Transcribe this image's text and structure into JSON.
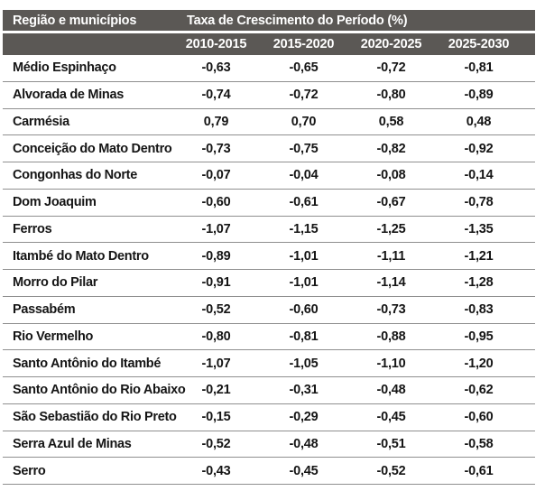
{
  "table": {
    "region_header": "Região e municípios",
    "group_header": "Taxa de Crescimento do Período (%)",
    "period_columns": [
      "2010-2015",
      "2015-2020",
      "2020-2025",
      "2025-2030"
    ],
    "rows": [
      {
        "name": "Médio Espinhaço",
        "values": [
          "-0,63",
          "-0,65",
          "-0,72",
          "-0,81"
        ]
      },
      {
        "name": "Alvorada de Minas",
        "values": [
          "-0,74",
          "-0,72",
          "-0,80",
          "-0,89"
        ]
      },
      {
        "name": "Carmésia",
        "values": [
          "0,79",
          "0,70",
          "0,58",
          "0,48"
        ]
      },
      {
        "name": "Conceição do Mato Dentro",
        "values": [
          "-0,73",
          "-0,75",
          "-0,82",
          "-0,92"
        ]
      },
      {
        "name": "Congonhas do Norte",
        "values": [
          "-0,07",
          "-0,04",
          "-0,08",
          "-0,14"
        ]
      },
      {
        "name": "Dom Joaquim",
        "values": [
          "-0,60",
          "-0,61",
          "-0,67",
          "-0,78"
        ]
      },
      {
        "name": "Ferros",
        "values": [
          "-1,07",
          "-1,15",
          "-1,25",
          "-1,35"
        ]
      },
      {
        "name": "Itambé do Mato Dentro",
        "values": [
          "-0,89",
          "-1,01",
          "-1,11",
          "-1,21"
        ]
      },
      {
        "name": "Morro do Pilar",
        "values": [
          "-0,91",
          "-1,01",
          "-1,14",
          "-1,28"
        ]
      },
      {
        "name": "Passabém",
        "values": [
          "-0,52",
          "-0,60",
          "-0,73",
          "-0,83"
        ]
      },
      {
        "name": "Rio Vermelho",
        "values": [
          "-0,80",
          "-0,81",
          "-0,88",
          "-0,95"
        ]
      },
      {
        "name": "Santo Antônio do Itambé",
        "values": [
          "-1,07",
          "-1,05",
          "-1,10",
          "-1,20"
        ]
      },
      {
        "name": "Santo Antônio do Rio Abaixo",
        "values": [
          "-0,21",
          "-0,31",
          "-0,48",
          "-0,62"
        ]
      },
      {
        "name": "São Sebastião do Rio Preto",
        "values": [
          "-0,15",
          "-0,29",
          "-0,45",
          "-0,60"
        ]
      },
      {
        "name": "Serra Azul de Minas",
        "values": [
          "-0,52",
          "-0,48",
          "-0,51",
          "-0,58"
        ]
      },
      {
        "name": "Serro",
        "values": [
          "-0,43",
          "-0,45",
          "-0,52",
          "-0,61"
        ]
      }
    ]
  },
  "colors": {
    "header_bg": "#5B5855",
    "header_text": "#FFFFFF",
    "row_text": "#151515",
    "row_border": "#8F8F8F",
    "page_bg": "#FFFFFF"
  }
}
